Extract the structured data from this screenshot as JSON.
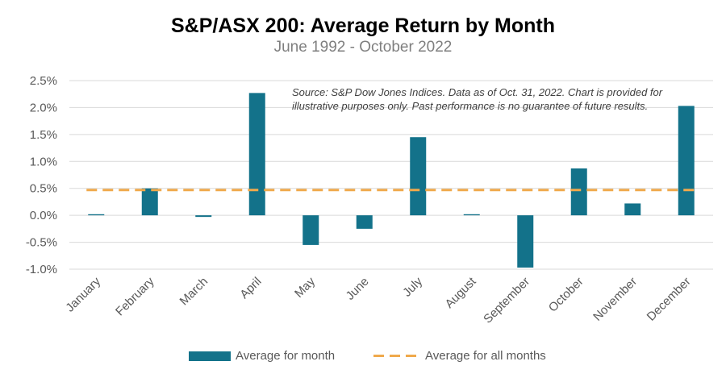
{
  "chart_data": {
    "type": "bar",
    "title": "S&P/ASX 200: Average Return by Month",
    "subtitle": "June 1992 - October 2022",
    "categories": [
      "January",
      "February",
      "March",
      "April",
      "May",
      "June",
      "July",
      "August",
      "September",
      "October",
      "November",
      "December"
    ],
    "series": [
      {
        "name": "Average for month",
        "type": "bar",
        "color": "#13728a",
        "values": [
          0.02,
          0.5,
          -0.03,
          2.27,
          -0.55,
          -0.25,
          1.45,
          0.02,
          -0.97,
          0.87,
          0.22,
          2.03
        ]
      },
      {
        "name": "Average for all months",
        "type": "line",
        "style": "dashed",
        "color": "#f0a94c",
        "values": [
          0.47,
          0.47,
          0.47,
          0.47,
          0.47,
          0.47,
          0.47,
          0.47,
          0.47,
          0.47,
          0.47,
          0.47
        ]
      }
    ],
    "ylim": [
      -1.0,
      2.5
    ],
    "yticks": [
      "2.5%",
      "2.0%",
      "1.5%",
      "1.0%",
      "0.5%",
      "0.0%",
      "-0.5%",
      "-1.0%"
    ],
    "ytick_values": [
      2.5,
      2.0,
      1.5,
      1.0,
      0.5,
      0.0,
      -0.5,
      -1.0
    ],
    "grid": true,
    "legend_position": "bottom",
    "annotation": "Source: S&P Dow Jones Indices. Data as of Oct. 31, 2022.  Chart is provided for illustrative purposes only. Past performance is no guarantee of future results."
  }
}
